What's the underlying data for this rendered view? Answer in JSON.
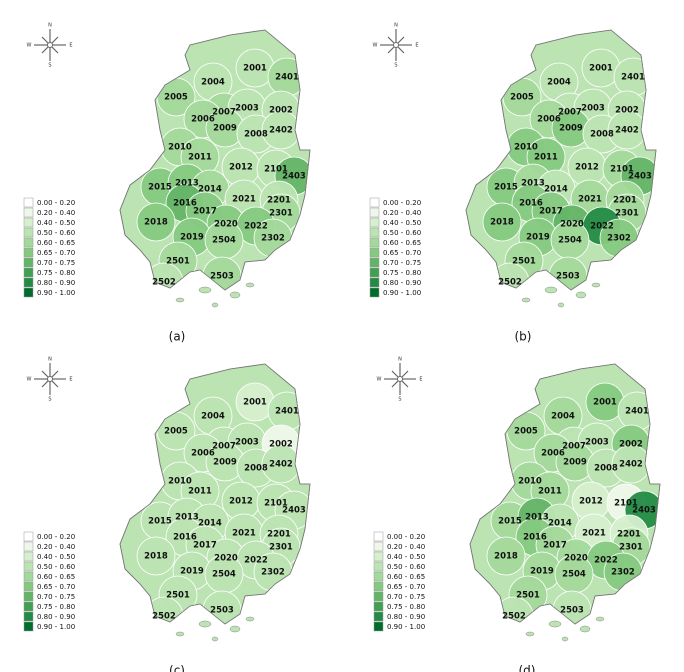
{
  "panels": [
    {
      "caption": "(a)"
    },
    {
      "caption": "(b)"
    },
    {
      "caption": "(c)"
    },
    {
      "caption": "(d)"
    }
  ],
  "compass": {
    "n": "N",
    "s": "S",
    "e": "E",
    "w": "W"
  },
  "regions": [
    "2001",
    "2401",
    "2004",
    "2005",
    "2007",
    "2003",
    "2002",
    "2006",
    "2009",
    "2008",
    "2402",
    "2010",
    "2011",
    "2012",
    "2101",
    "2403",
    "2015",
    "2013",
    "2014",
    "2021",
    "2201",
    "2016",
    "2017",
    "2301",
    "2018",
    "2020",
    "2022",
    "2019",
    "2504",
    "2302",
    "2501",
    "2503",
    "2502"
  ],
  "legend": {
    "items": [
      {
        "label": "0.00 - 0.20",
        "color": "#ffffff"
      },
      {
        "label": "0.20 - 0.40",
        "color": "#eef8ea"
      },
      {
        "label": "0.40 - 0.50",
        "color": "#d6efcf"
      },
      {
        "label": "0.50 - 0.60",
        "color": "#bce4b3"
      },
      {
        "label": "0.60 - 0.65",
        "color": "#a3d99b"
      },
      {
        "label": "0.65 - 0.70",
        "color": "#85c97f"
      },
      {
        "label": "0.70 - 0.75",
        "color": "#63b467"
      },
      {
        "label": "0.75 - 0.80",
        "color": "#43a052"
      },
      {
        "label": "0.80 - 0.90",
        "color": "#238b45"
      },
      {
        "label": "0.90 - 1.00",
        "color": "#006d2c"
      }
    ]
  }
}
